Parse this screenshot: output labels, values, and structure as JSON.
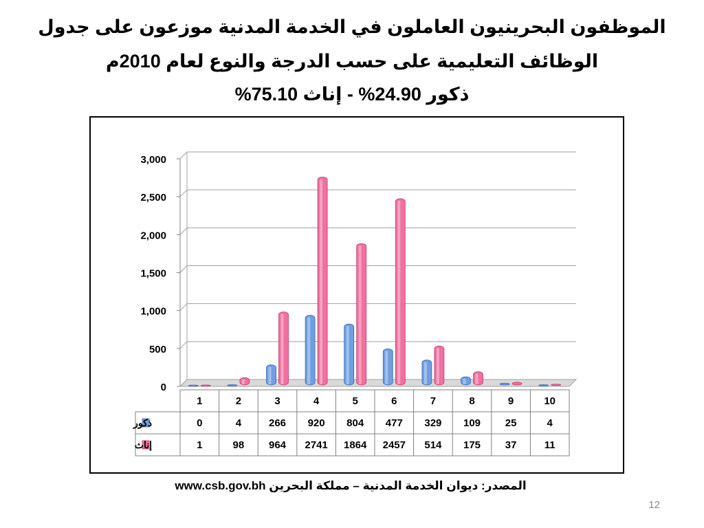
{
  "title": {
    "line1": "الموظفون البحرينيون العاملون في الخدمة المدنية موزعون على جدول",
    "line2": "الوظائف التعليمية على حسب الدرجة والنوع لعام 2010م",
    "line3": "ذكور 24.90% - إناث 75.10%"
  },
  "source": "المصدر: ديوان الخدمة المدنية – مملكة البحرين www.csb.gov.bh",
  "page_number": "12",
  "chart_data": {
    "type": "bar",
    "categories": [
      "1",
      "2",
      "3",
      "4",
      "5",
      "6",
      "7",
      "8",
      "9",
      "10"
    ],
    "series": [
      {
        "name": "ذكور",
        "values": [
          0,
          4,
          266,
          920,
          804,
          477,
          329,
          109,
          25,
          4
        ],
        "color": "#6f9fe0"
      },
      {
        "name": "إناث",
        "values": [
          1,
          98,
          964,
          2741,
          1864,
          2457,
          514,
          175,
          37,
          11
        ],
        "color": "#f070a0"
      }
    ],
    "yticks": [
      "0",
      "500",
      "1,000",
      "1,500",
      "2,000",
      "2,500",
      "3,000"
    ],
    "ylim": [
      0,
      3000
    ],
    "grid": true,
    "legend": "data-table"
  }
}
